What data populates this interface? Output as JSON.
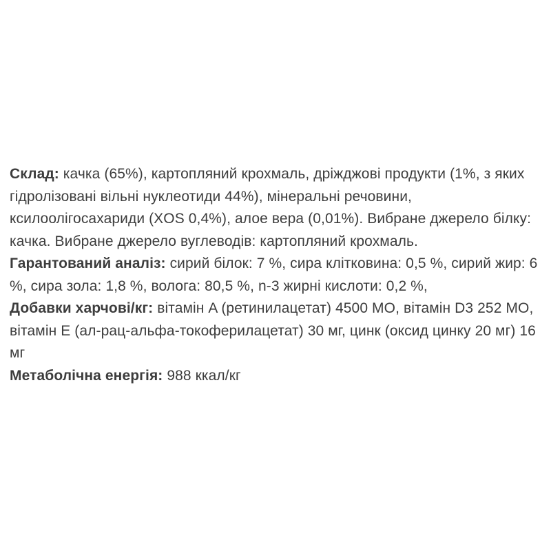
{
  "page": {
    "background_color": "#ffffff",
    "text_color": "#3d3d3d"
  },
  "sections": [
    {
      "label": "Склад:",
      "text": " качка (65%), картопляний крохмаль, дріжджові продукти (1%, з яких гідролізовані вільні нуклеотиди 44%), мінеральні речовини, ксилоолігосахариди (XOS 0,4%), алое вера (0,01%). Вибране джерело білку: качка. Вибране джерело вуглеводів: картопляний крохмаль."
    },
    {
      "label": "Гарантований аналіз:",
      "text": " сирий білок: 7 %, сира клітковина: 0,5 %, сирий жир: 6 %, сира зола: 1,8 %, волога: 80,5 %, n-3 жирні кислоти: 0,2 %,"
    },
    {
      "label": "Добавки харчові/кг:",
      "text": " вітамін A (ретинилацетат) 4500 МО, вітамін D3 252 МО, вітамін E (ал-рац-альфа-токоферилацетат) 30 мг, цинк (оксид цинку 20 мг) 16 мг"
    },
    {
      "label": "Метаболічна енергія:",
      "text": " 988 ккал/кг"
    }
  ]
}
